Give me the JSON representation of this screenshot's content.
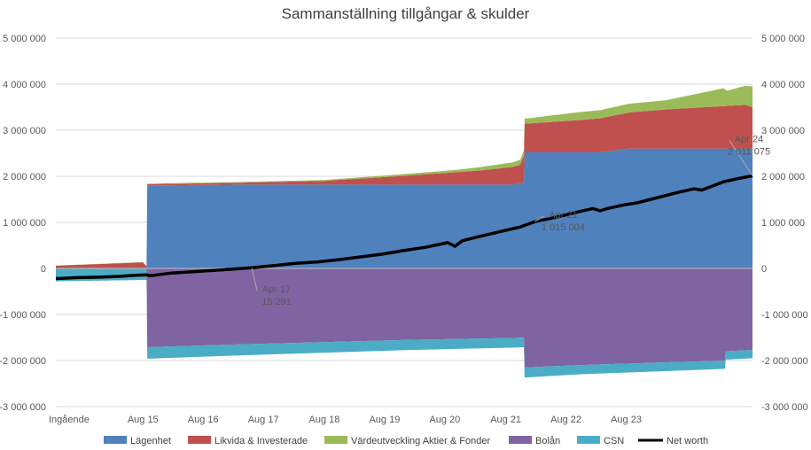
{
  "chart_data": {
    "type": "area",
    "title": "Sammanställning tillgångar & skulder",
    "ylim": [
      -3000000,
      5000000
    ],
    "y_ticks": [
      5000000,
      4000000,
      3000000,
      2000000,
      1000000,
      0,
      -1000000,
      -2000000,
      -3000000
    ],
    "y_tick_labels": [
      "5 000 000",
      "4 000 000",
      "3 000 000",
      "2 000 000",
      "1 000 000",
      "0",
      "-1 000 000",
      "-2 000 000",
      "-3 000 000"
    ],
    "x_tick_labels": [
      "Ingående",
      "Aug 15",
      "Aug 16",
      "Aug 17",
      "Aug 18",
      "Aug 19",
      "Aug 20",
      "Aug 21",
      "Aug 22",
      "Aug 23"
    ],
    "grid": true,
    "legend_position": "bottom",
    "colors": {
      "Lägenhet": "#4f81bd",
      "Likvida & Investerade": "#c0504d",
      "Värdeutveckling Aktier & Fonder": "#9bbb59",
      "Bolån": "#8064a2",
      "CSN": "#4bacc6",
      "Net worth": "#000000"
    },
    "series": [
      {
        "name": "Lägenhet",
        "kind": "area",
        "x": [
          0,
          12.5,
          12.6,
          25,
          37,
          49,
          63,
          64.5,
          64.6,
          75,
          79,
          95,
          96
        ],
        "values": [
          0,
          0,
          1800000,
          1820000,
          1820000,
          1820000,
          1820000,
          1870000,
          2520000,
          2520000,
          2600000,
          2600000,
          2600000
        ]
      },
      {
        "name": "Likvida & Investerade",
        "kind": "area",
        "x": [
          0,
          12,
          12.6,
          25,
          37,
          49,
          58,
          64,
          64.6,
          72,
          84,
          95,
          96
        ],
        "values": [
          60000,
          130000,
          30000,
          40000,
          80000,
          200000,
          300000,
          400000,
          620000,
          700000,
          850000,
          950000,
          900000
        ]
      },
      {
        "name": "Värdeutveckling Aktier & Fonder",
        "kind": "area",
        "x": [
          0,
          12.6,
          37,
          49,
          55,
          64.6,
          72,
          84,
          90,
          92,
          92.5,
          96
        ],
        "values": [
          0,
          10000,
          20000,
          40000,
          50000,
          110000,
          170000,
          200000,
          340000,
          390000,
          330000,
          450000
        ]
      },
      {
        "name": "Bolån",
        "kind": "area",
        "x": [
          0,
          12.5,
          12.6,
          25,
          37,
          49,
          63,
          64.5,
          64.6,
          72,
          84,
          92.2,
          92.3,
          96
        ],
        "values": [
          0,
          0,
          -1710000,
          -1650000,
          -1600000,
          -1550000,
          -1510000,
          -1500000,
          -2150000,
          -2100000,
          -2040000,
          -2000000,
          -1800000,
          -1770000
        ]
      },
      {
        "name": "CSN",
        "kind": "area",
        "x": [
          0,
          12.5,
          12.6,
          25,
          37,
          49,
          63,
          64.5,
          64.6,
          72,
          84,
          92.2,
          92.3,
          96
        ],
        "values": [
          -280000,
          -250000,
          -250000,
          -240000,
          -230000,
          -220000,
          -210000,
          -210000,
          -220000,
          -200000,
          -190000,
          -180000,
          -180000,
          -180000
        ]
      },
      {
        "name": "Net worth",
        "kind": "line",
        "x": [
          0,
          3,
          6,
          9,
          11,
          12.5,
          13,
          16,
          20,
          24,
          27,
          30,
          33,
          36,
          39,
          42,
          45,
          48,
          51,
          54,
          55,
          56,
          58,
          61,
          64,
          66,
          68,
          70,
          72,
          74,
          75,
          76,
          78,
          80,
          82,
          84,
          86,
          88,
          89,
          90,
          91,
          92,
          94,
          96
        ],
        "values": [
          -220000,
          -200000,
          -190000,
          -170000,
          -150000,
          -140000,
          -160000,
          -100000,
          -60000,
          -20000,
          15291,
          60000,
          110000,
          140000,
          190000,
          250000,
          310000,
          390000,
          460000,
          560000,
          480000,
          600000,
          680000,
          790000,
          900000,
          1015004,
          1080000,
          1150000,
          1230000,
          1300000,
          1250000,
          1300000,
          1370000,
          1420000,
          1500000,
          1580000,
          1660000,
          1730000,
          1700000,
          1760000,
          1820000,
          1880000,
          1950000,
          2011075
        ]
      }
    ],
    "annotations": [
      {
        "label": "Apr 17",
        "value_label": "15 291",
        "x": 27,
        "y": 15291
      },
      {
        "label": "Apr 21",
        "value_label": "1 015 004",
        "x": 66,
        "y": 1015004
      },
      {
        "label": "Apr 24",
        "value_label": "2 011 075",
        "x": 96,
        "y": 2011075
      }
    ]
  }
}
